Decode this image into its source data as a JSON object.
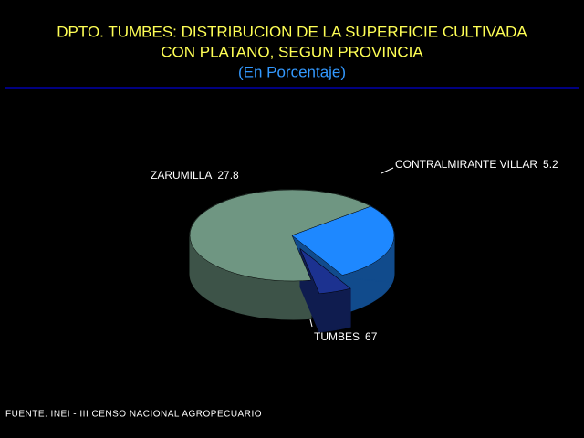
{
  "chart_data": {
    "type": "pie",
    "title": [
      "DPTO. TUMBES: DISTRIBUCION DE LA SUPERFICIE CULTIVADA",
      "CON PLATANO, SEGUN PROVINCIA"
    ],
    "subtitle": "(En Porcentaje)",
    "source": "FUENTE: INEI - III CENSO NACIONAL AGROPECUARIO",
    "categories": [
      "TUMBES",
      "ZARUMILLA",
      "CONTRALMIRANTE VILLAR"
    ],
    "values": [
      67,
      27.8,
      5.2
    ],
    "colors": [
      "#6f9682",
      "#1e88ff",
      "#1c3290"
    ]
  }
}
